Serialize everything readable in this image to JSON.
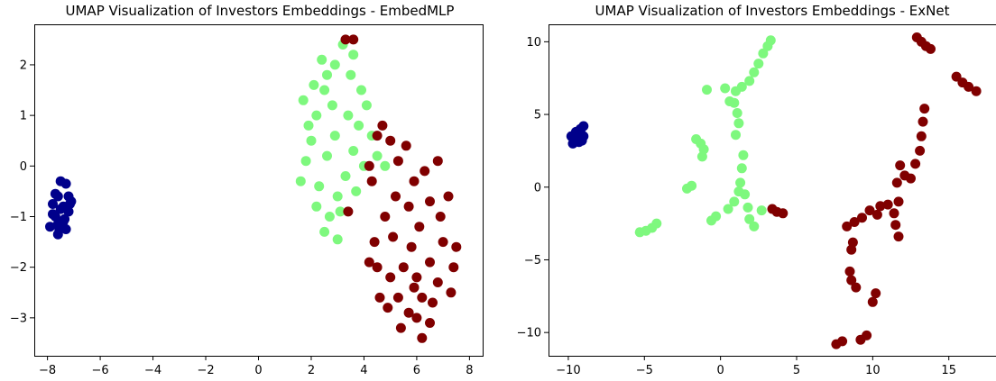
{
  "colors": {
    "navy": "#00008b",
    "green": "#7ef87e",
    "maroon": "#800000"
  },
  "chart_data": [
    {
      "type": "scatter",
      "title": "UMAP Visualization of Investors Embeddings - EmbedMLP",
      "xlabel": "",
      "ylabel": "",
      "xlim": [
        -8.5,
        8.5
      ],
      "ylim": [
        -3.75,
        2.8
      ],
      "xticks": [
        -8,
        -6,
        -4,
        -2,
        0,
        2,
        4,
        6,
        8
      ],
      "yticks": [
        -3,
        -2,
        -1,
        0,
        1,
        2
      ],
      "xtick_labels": [
        "−8",
        "−6",
        "−4",
        "−2",
        "0",
        "2",
        "4",
        "6",
        "8"
      ],
      "ytick_labels": [
        "−3",
        "−2",
        "−1",
        "0",
        "1",
        "2"
      ],
      "grid": false,
      "series": [
        {
          "color": "#00008b",
          "points": [
            [
              -7.6,
              -0.6
            ],
            [
              -7.5,
              -0.3
            ],
            [
              -7.3,
              -0.35
            ],
            [
              -7.8,
              -0.75
            ],
            [
              -7.1,
              -0.7
            ],
            [
              -7.7,
              -1.0
            ],
            [
              -7.4,
              -1.1
            ],
            [
              -7.2,
              -0.9
            ],
            [
              -7.9,
              -1.2
            ],
            [
              -7.6,
              -1.35
            ],
            [
              -7.3,
              -1.25
            ],
            [
              -7.5,
              -0.85
            ],
            [
              -7.2,
              -0.6
            ],
            [
              -7.7,
              -0.55
            ],
            [
              -7.4,
              -0.8
            ],
            [
              -7.6,
              -1.15
            ],
            [
              -7.8,
              -0.95
            ],
            [
              -7.35,
              -1.05
            ],
            [
              -7.55,
              -1.25
            ],
            [
              -7.15,
              -0.75
            ]
          ]
        },
        {
          "color": "#7ef87e",
          "points": [
            [
              1.6,
              -0.3
            ],
            [
              1.8,
              0.1
            ],
            [
              2.0,
              0.5
            ],
            [
              2.2,
              1.0
            ],
            [
              2.5,
              1.5
            ],
            [
              2.9,
              2.0
            ],
            [
              3.2,
              2.4
            ],
            [
              3.5,
              1.8
            ],
            [
              3.9,
              1.5
            ],
            [
              4.1,
              1.2
            ],
            [
              3.8,
              0.8
            ],
            [
              3.6,
              0.3
            ],
            [
              3.3,
              -0.2
            ],
            [
              3.0,
              -0.6
            ],
            [
              2.7,
              -1.0
            ],
            [
              2.5,
              -1.3
            ],
            [
              3.0,
              -1.45
            ],
            [
              2.2,
              -0.8
            ],
            [
              1.9,
              0.8
            ],
            [
              2.6,
              0.2
            ],
            [
              2.8,
              1.2
            ],
            [
              3.4,
              1.0
            ],
            [
              4.3,
              0.6
            ],
            [
              4.5,
              0.2
            ],
            [
              4.8,
              0.0
            ],
            [
              2.1,
              1.6
            ],
            [
              2.4,
              2.1
            ],
            [
              3.6,
              2.2
            ],
            [
              1.7,
              1.3
            ],
            [
              2.3,
              -0.4
            ],
            [
              2.9,
              0.6
            ],
            [
              3.1,
              -0.9
            ],
            [
              3.7,
              -0.5
            ],
            [
              4.0,
              0.0
            ],
            [
              2.6,
              1.8
            ]
          ]
        },
        {
          "color": "#800000",
          "points": [
            [
              3.3,
              2.5
            ],
            [
              3.6,
              2.5
            ],
            [
              4.7,
              0.8
            ],
            [
              4.5,
              0.6
            ],
            [
              4.2,
              0.0
            ],
            [
              4.3,
              -0.3
            ],
            [
              5.0,
              0.5
            ],
            [
              5.3,
              0.1
            ],
            [
              5.6,
              0.4
            ],
            [
              5.9,
              -0.3
            ],
            [
              6.3,
              -0.1
            ],
            [
              6.8,
              0.1
            ],
            [
              7.2,
              -0.6
            ],
            [
              6.9,
              -1.0
            ],
            [
              6.5,
              -0.7
            ],
            [
              6.1,
              -1.2
            ],
            [
              5.7,
              -0.8
            ],
            [
              5.2,
              -0.6
            ],
            [
              4.8,
              -1.0
            ],
            [
              4.4,
              -1.5
            ],
            [
              4.5,
              -2.0
            ],
            [
              5.0,
              -2.2
            ],
            [
              5.5,
              -2.0
            ],
            [
              6.0,
              -2.2
            ],
            [
              6.5,
              -1.9
            ],
            [
              7.0,
              -1.5
            ],
            [
              7.4,
              -2.0
            ],
            [
              7.5,
              -1.6
            ],
            [
              6.8,
              -2.3
            ],
            [
              6.2,
              -2.6
            ],
            [
              5.7,
              -2.9
            ],
            [
              5.3,
              -2.6
            ],
            [
              4.9,
              -2.8
            ],
            [
              4.6,
              -2.6
            ],
            [
              6.0,
              -3.0
            ],
            [
              6.2,
              -3.4
            ],
            [
              6.5,
              -3.1
            ],
            [
              7.3,
              -2.5
            ],
            [
              5.8,
              -1.6
            ],
            [
              5.1,
              -1.4
            ],
            [
              4.2,
              -1.9
            ],
            [
              3.4,
              -0.9
            ],
            [
              5.9,
              -2.4
            ],
            [
              6.6,
              -2.7
            ],
            [
              5.4,
              -3.2
            ]
          ]
        }
      ]
    },
    {
      "type": "scatter",
      "title": "UMAP Visualization of Investors Embeddings - ExNet",
      "xlabel": "",
      "ylabel": "",
      "xlim": [
        -11.3,
        18.1
      ],
      "ylim": [
        -11.6,
        11.2
      ],
      "xticks": [
        -10,
        -5,
        0,
        5,
        10,
        15
      ],
      "yticks": [
        -10,
        -5,
        0,
        5,
        10
      ],
      "xtick_labels": [
        "−10",
        "−5",
        "0",
        "5",
        "10",
        "15"
      ],
      "ytick_labels": [
        "−10",
        "−5",
        "0",
        "5",
        "10"
      ],
      "grid": false,
      "series": [
        {
          "color": "#00008b",
          "points": [
            [
              -9.6,
              3.3
            ],
            [
              -9.4,
              3.6
            ],
            [
              -9.2,
              3.9
            ],
            [
              -9.0,
              4.2
            ],
            [
              -9.7,
              3.0
            ],
            [
              -9.3,
              3.1
            ],
            [
              -9.0,
              3.5
            ],
            [
              -9.5,
              3.8
            ],
            [
              -9.1,
              3.2
            ],
            [
              -9.8,
              3.5
            ],
            [
              -9.35,
              3.45
            ],
            [
              -9.2,
              4.0
            ]
          ]
        },
        {
          "color": "#7ef87e",
          "points": [
            [
              3.3,
              10.1
            ],
            [
              3.1,
              9.7
            ],
            [
              2.8,
              9.2
            ],
            [
              2.5,
              8.5
            ],
            [
              2.2,
              7.9
            ],
            [
              1.9,
              7.3
            ],
            [
              1.4,
              6.9
            ],
            [
              1.0,
              6.6
            ],
            [
              0.9,
              5.8
            ],
            [
              1.1,
              5.1
            ],
            [
              1.2,
              4.4
            ],
            [
              1.0,
              3.6
            ],
            [
              -1.6,
              3.3
            ],
            [
              -1.3,
              3.0
            ],
            [
              -1.1,
              2.6
            ],
            [
              -1.2,
              2.1
            ],
            [
              1.5,
              2.2
            ],
            [
              1.4,
              1.3
            ],
            [
              1.3,
              0.3
            ],
            [
              1.2,
              -0.3
            ],
            [
              0.9,
              -1.0
            ],
            [
              0.5,
              -1.5
            ],
            [
              -0.3,
              -2.0
            ],
            [
              -0.6,
              -2.3
            ],
            [
              1.6,
              -0.5
            ],
            [
              1.8,
              -1.4
            ],
            [
              1.9,
              -2.2
            ],
            [
              2.2,
              -2.7
            ],
            [
              -2.2,
              -0.1
            ],
            [
              -1.9,
              0.1
            ],
            [
              -4.2,
              -2.5
            ],
            [
              -4.5,
              -2.8
            ],
            [
              -4.9,
              -3.0
            ],
            [
              -5.3,
              -3.1
            ],
            [
              -0.9,
              6.7
            ],
            [
              0.3,
              6.8
            ],
            [
              0.6,
              5.9
            ],
            [
              2.7,
              -1.6
            ]
          ]
        },
        {
          "color": "#800000",
          "points": [
            [
              12.9,
              10.3
            ],
            [
              13.2,
              10.0
            ],
            [
              13.5,
              9.7
            ],
            [
              13.8,
              9.5
            ],
            [
              15.5,
              7.6
            ],
            [
              15.9,
              7.2
            ],
            [
              16.3,
              6.9
            ],
            [
              16.8,
              6.6
            ],
            [
              13.4,
              5.4
            ],
            [
              13.3,
              4.5
            ],
            [
              13.2,
              3.5
            ],
            [
              13.1,
              2.5
            ],
            [
              12.8,
              1.6
            ],
            [
              12.5,
              0.6
            ],
            [
              11.8,
              1.5
            ],
            [
              11.6,
              0.3
            ],
            [
              11.7,
              -1.0
            ],
            [
              11.4,
              -1.8
            ],
            [
              11.5,
              -2.6
            ],
            [
              11.7,
              -3.4
            ],
            [
              10.5,
              -1.3
            ],
            [
              9.8,
              -1.6
            ],
            [
              9.3,
              -2.1
            ],
            [
              8.8,
              -2.4
            ],
            [
              8.3,
              -2.7
            ],
            [
              8.7,
              -3.8
            ],
            [
              8.6,
              -4.3
            ],
            [
              8.5,
              -5.8
            ],
            [
              8.6,
              -6.4
            ],
            [
              8.9,
              -6.9
            ],
            [
              10.2,
              -7.3
            ],
            [
              10.0,
              -7.9
            ],
            [
              9.6,
              -10.2
            ],
            [
              9.2,
              -10.5
            ],
            [
              8.0,
              -10.6
            ],
            [
              7.6,
              -10.8
            ],
            [
              3.4,
              -1.5
            ],
            [
              3.7,
              -1.7
            ],
            [
              4.1,
              -1.8
            ],
            [
              10.3,
              -1.9
            ],
            [
              11.0,
              -1.2
            ],
            [
              12.1,
              0.8
            ]
          ]
        }
      ]
    }
  ]
}
